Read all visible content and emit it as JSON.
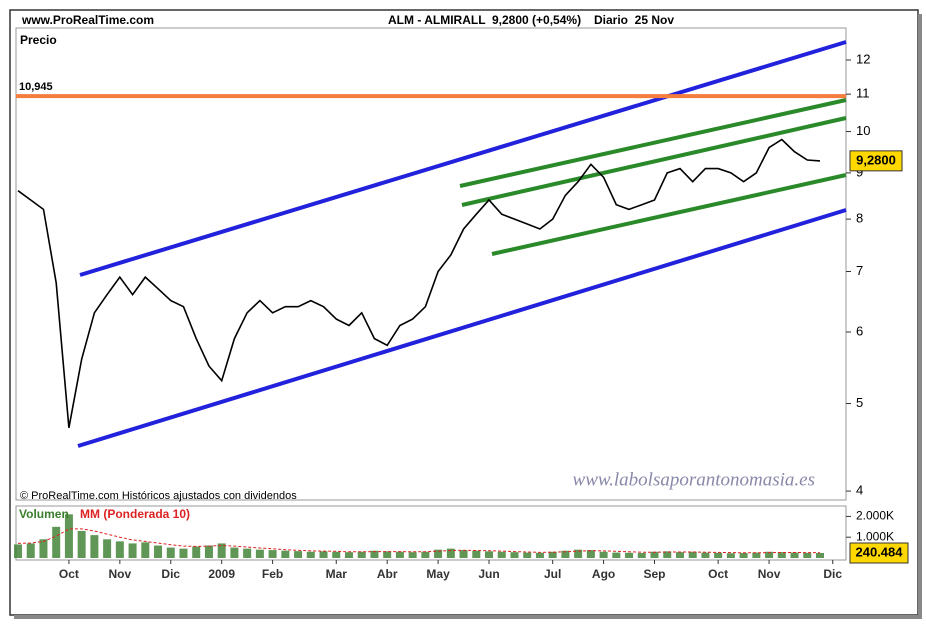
{
  "header": {
    "site": "www.ProRealTime.com",
    "symbol": "ALM - ALMIRALL",
    "quote": "9,2800 (+0,54%)",
    "period": "Diario  25 Nov"
  },
  "chart_data": [
    {
      "type": "line",
      "y_label": "Precio",
      "log_scale": true,
      "series": [
        {
          "name": "Precio",
          "color": "#000000",
          "values": [
            8.6,
            8.4,
            8.2,
            6.8,
            4.7,
            5.6,
            6.3,
            6.6,
            6.9,
            6.6,
            6.9,
            6.7,
            6.5,
            6.4,
            5.9,
            5.5,
            5.3,
            5.9,
            6.3,
            6.5,
            6.3,
            6.4,
            6.4,
            6.5,
            6.4,
            6.2,
            6.1,
            6.3,
            5.9,
            5.8,
            6.1,
            6.2,
            6.4,
            7.0,
            7.3,
            7.8,
            8.1,
            8.4,
            8.1,
            8.0,
            7.9,
            7.8,
            8.0,
            8.5,
            8.8,
            9.2,
            8.9,
            8.3,
            8.2,
            8.3,
            8.4,
            9.0,
            9.1,
            8.8,
            9.1,
            9.1,
            9.0,
            8.8,
            9.0,
            9.6,
            9.8,
            9.5,
            9.3,
            9.28,
            null
          ]
        }
      ],
      "ylim": [
        3.91,
        13.02
      ],
      "yticks": [
        4,
        5,
        6,
        7,
        8,
        9,
        10,
        11,
        12
      ],
      "hline": {
        "value": 10.945,
        "label": "10,945",
        "color": "#f47c3c"
      },
      "last": {
        "value": 9.28,
        "label": "9,2800"
      },
      "footnote": "© ProRealTime.com Históricos ajustados con dividendos",
      "watermark": "www.labolsaporantonomasia.es"
    },
    {
      "type": "bar",
      "categories": [
        null,
        null,
        null,
        null,
        "Oct",
        null,
        null,
        null,
        "Nov",
        null,
        null,
        null,
        "Dic",
        null,
        null,
        null,
        "2009",
        null,
        null,
        null,
        "Feb",
        null,
        null,
        null,
        null,
        "Mar",
        null,
        null,
        null,
        "Abr",
        null,
        null,
        null,
        "May",
        null,
        null,
        null,
        "Jun",
        null,
        null,
        null,
        null,
        "Jul",
        null,
        null,
        null,
        "Ago",
        null,
        null,
        null,
        "Sep",
        null,
        null,
        null,
        null,
        "Oct",
        null,
        null,
        null,
        "Nov",
        null,
        null,
        null,
        null,
        "Dic"
      ],
      "series": [
        {
          "name": "Volumen",
          "color": "#3a7d2c",
          "values": [
            650,
            700,
            900,
            1500,
            2100,
            1300,
            1100,
            900,
            800,
            700,
            750,
            600,
            500,
            450,
            550,
            600,
            700,
            500,
            450,
            400,
            380,
            350,
            330,
            300,
            320,
            300,
            280,
            300,
            350,
            320,
            300,
            280,
            300,
            400,
            450,
            380,
            350,
            320,
            300,
            280,
            260,
            250,
            300,
            350,
            400,
            380,
            300,
            260,
            250,
            240,
            300,
            320,
            280,
            300,
            260,
            250,
            230,
            240,
            260,
            300,
            280,
            260,
            250,
            240.484,
            null
          ]
        },
        {
          "name": "MM (Ponderada 10)",
          "color": "#dd2222",
          "values": [
            700,
            720,
            800,
            1050,
            1400,
            1400,
            1300,
            1150,
            1000,
            870,
            800,
            720,
            640,
            570,
            560,
            570,
            600,
            570,
            530,
            480,
            440,
            400,
            370,
            340,
            330,
            320,
            300,
            300,
            310,
            310,
            310,
            300,
            300,
            330,
            360,
            370,
            360,
            350,
            330,
            310,
            290,
            270,
            280,
            300,
            330,
            350,
            340,
            320,
            300,
            280,
            280,
            290,
            290,
            290,
            280,
            270,
            260,
            250,
            250,
            260,
            265,
            265,
            260,
            255,
            null
          ]
        }
      ],
      "ylim": [
        0,
        2500
      ],
      "yticks": [
        {
          "value": 1000,
          "label": "1.000K"
        },
        {
          "value": 2000,
          "label": "2.000K"
        }
      ],
      "last": {
        "value": 240.484,
        "label": "240.484"
      }
    }
  ]
}
